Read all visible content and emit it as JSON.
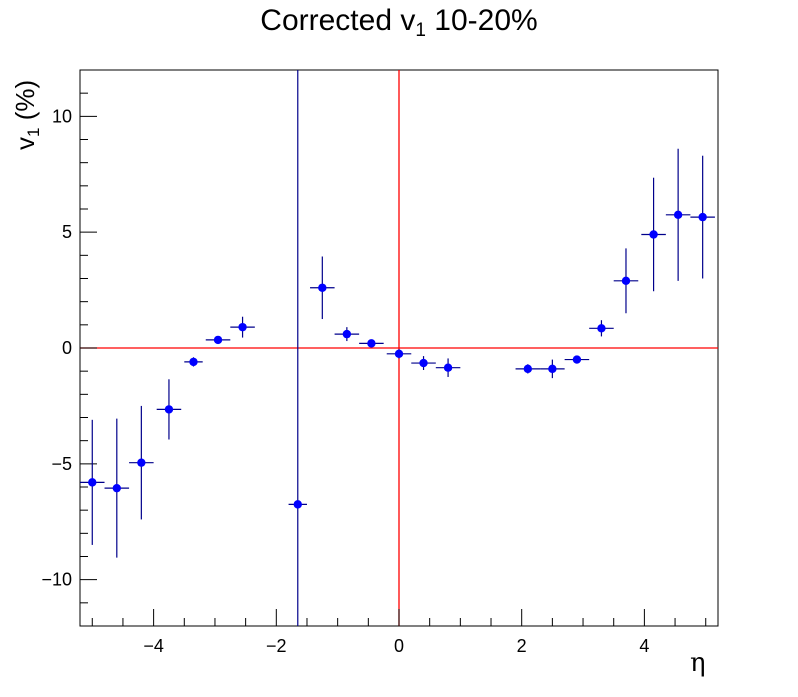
{
  "title": {
    "text": "Corrected v",
    "sub": "1",
    "suffix": " 10-20%"
  },
  "chart_data": {
    "type": "scatter",
    "title": "Corrected v1 10-20%",
    "xlabel": "η",
    "ylabel": "v1 (%)",
    "xlim": [
      -5.2,
      5.2
    ],
    "ylim": [
      -12,
      12
    ],
    "x_ticks": [
      -4,
      -2,
      0,
      2,
      4
    ],
    "x_tick_labels": [
      "−4",
      "−2",
      "0",
      "2",
      "4"
    ],
    "y_ticks": [
      -10,
      -5,
      0,
      5,
      10
    ],
    "y_tick_labels": [
      "−10",
      "−5",
      "0",
      "5",
      "10"
    ],
    "grid": false,
    "reference_lines": {
      "x": 0,
      "y": 0,
      "color": "#ff0000"
    },
    "marker_color": "#0000ff",
    "errorbar_color": "#00008b",
    "series": [
      {
        "points": [
          {
            "x": -5.0,
            "y": -5.8,
            "xerr": 0.2,
            "yerr": 2.7
          },
          {
            "x": -4.6,
            "y": -6.05,
            "xerr": 0.2,
            "yerr": 3.0
          },
          {
            "x": -4.2,
            "y": -4.95,
            "xerr": 0.2,
            "yerr": 2.45
          },
          {
            "x": -3.75,
            "y": -2.65,
            "xerr": 0.2,
            "yerr": 1.3
          },
          {
            "x": -3.35,
            "y": -0.6,
            "xerr": 0.15,
            "yerr": 0.2
          },
          {
            "x": -2.95,
            "y": 0.35,
            "xerr": 0.2,
            "yerr": 0.15
          },
          {
            "x": -2.55,
            "y": 0.9,
            "xerr": 0.2,
            "yerr": 0.45
          },
          {
            "x": -1.65,
            "y": -6.75,
            "xerr": 0.15,
            "yerr": 50
          },
          {
            "x": -1.25,
            "y": 2.6,
            "xerr": 0.2,
            "yerr": 1.35
          },
          {
            "x": -0.85,
            "y": 0.6,
            "xerr": 0.2,
            "yerr": 0.3
          },
          {
            "x": -0.45,
            "y": 0.2,
            "xerr": 0.2,
            "yerr": 0.15
          },
          {
            "x": 0.0,
            "y": -0.25,
            "xerr": 0.2,
            "yerr": 0.2
          },
          {
            "x": 0.4,
            "y": -0.65,
            "xerr": 0.2,
            "yerr": 0.3
          },
          {
            "x": 0.8,
            "y": -0.85,
            "xerr": 0.2,
            "yerr": 0.4
          },
          {
            "x": 2.1,
            "y": -0.9,
            "xerr": 0.2,
            "yerr": 0.2
          },
          {
            "x": 2.5,
            "y": -0.9,
            "xerr": 0.2,
            "yerr": 0.4
          },
          {
            "x": 2.9,
            "y": -0.5,
            "xerr": 0.2,
            "yerr": 0.15
          },
          {
            "x": 3.3,
            "y": 0.85,
            "xerr": 0.2,
            "yerr": 0.35
          },
          {
            "x": 3.7,
            "y": 2.9,
            "xerr": 0.2,
            "yerr": 1.4
          },
          {
            "x": 4.15,
            "y": 4.9,
            "xerr": 0.2,
            "yerr": 2.45
          },
          {
            "x": 4.55,
            "y": 5.75,
            "xerr": 0.2,
            "yerr": 2.85
          },
          {
            "x": 4.95,
            "y": 5.65,
            "xerr": 0.2,
            "yerr": 2.65
          }
        ]
      }
    ]
  },
  "labels": {
    "y_main": "v",
    "y_sub": "1",
    "y_suffix": " (%)",
    "x": "η"
  }
}
